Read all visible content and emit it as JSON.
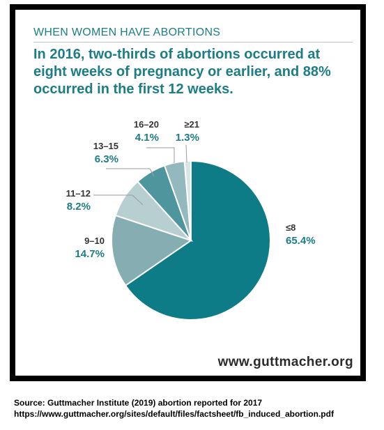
{
  "header": {
    "overline": "WHEN WOMEN HAVE ABORTIONS",
    "headline": "In 2016, two-thirds of abortions occurred at eight weeks of pregnancy or earlier, and 88% occurred in the first 12 weeks."
  },
  "footer": {
    "site": "www.guttmacher.org"
  },
  "source": {
    "line1": "Source: Guttmacher Institute (2019) abortion reported for 2017",
    "line2": "https://www.guttmacher.org/sites/default/files/factsheet/fb_induced_abortion.pdf"
  },
  "chart_data": {
    "type": "pie",
    "title": "",
    "slices": [
      {
        "label": "≤8",
        "value": 65.4,
        "value_label": "65.4%",
        "color": "#0e7c86"
      },
      {
        "label": "9–10",
        "value": 14.7,
        "value_label": "14.7%",
        "color": "#86adb2"
      },
      {
        "label": "11–12",
        "value": 8.2,
        "value_label": "8.2%",
        "color": "#b8cfd2"
      },
      {
        "label": "13–15",
        "value": 6.3,
        "value_label": "6.3%",
        "color": "#4f959d"
      },
      {
        "label": "16–20",
        "value": 4.1,
        "value_label": "4.1%",
        "color": "#93b8bd"
      },
      {
        "label": "≥21",
        "value": 1.3,
        "value_label": "1.3%",
        "color": "#d9e6e8"
      }
    ]
  }
}
